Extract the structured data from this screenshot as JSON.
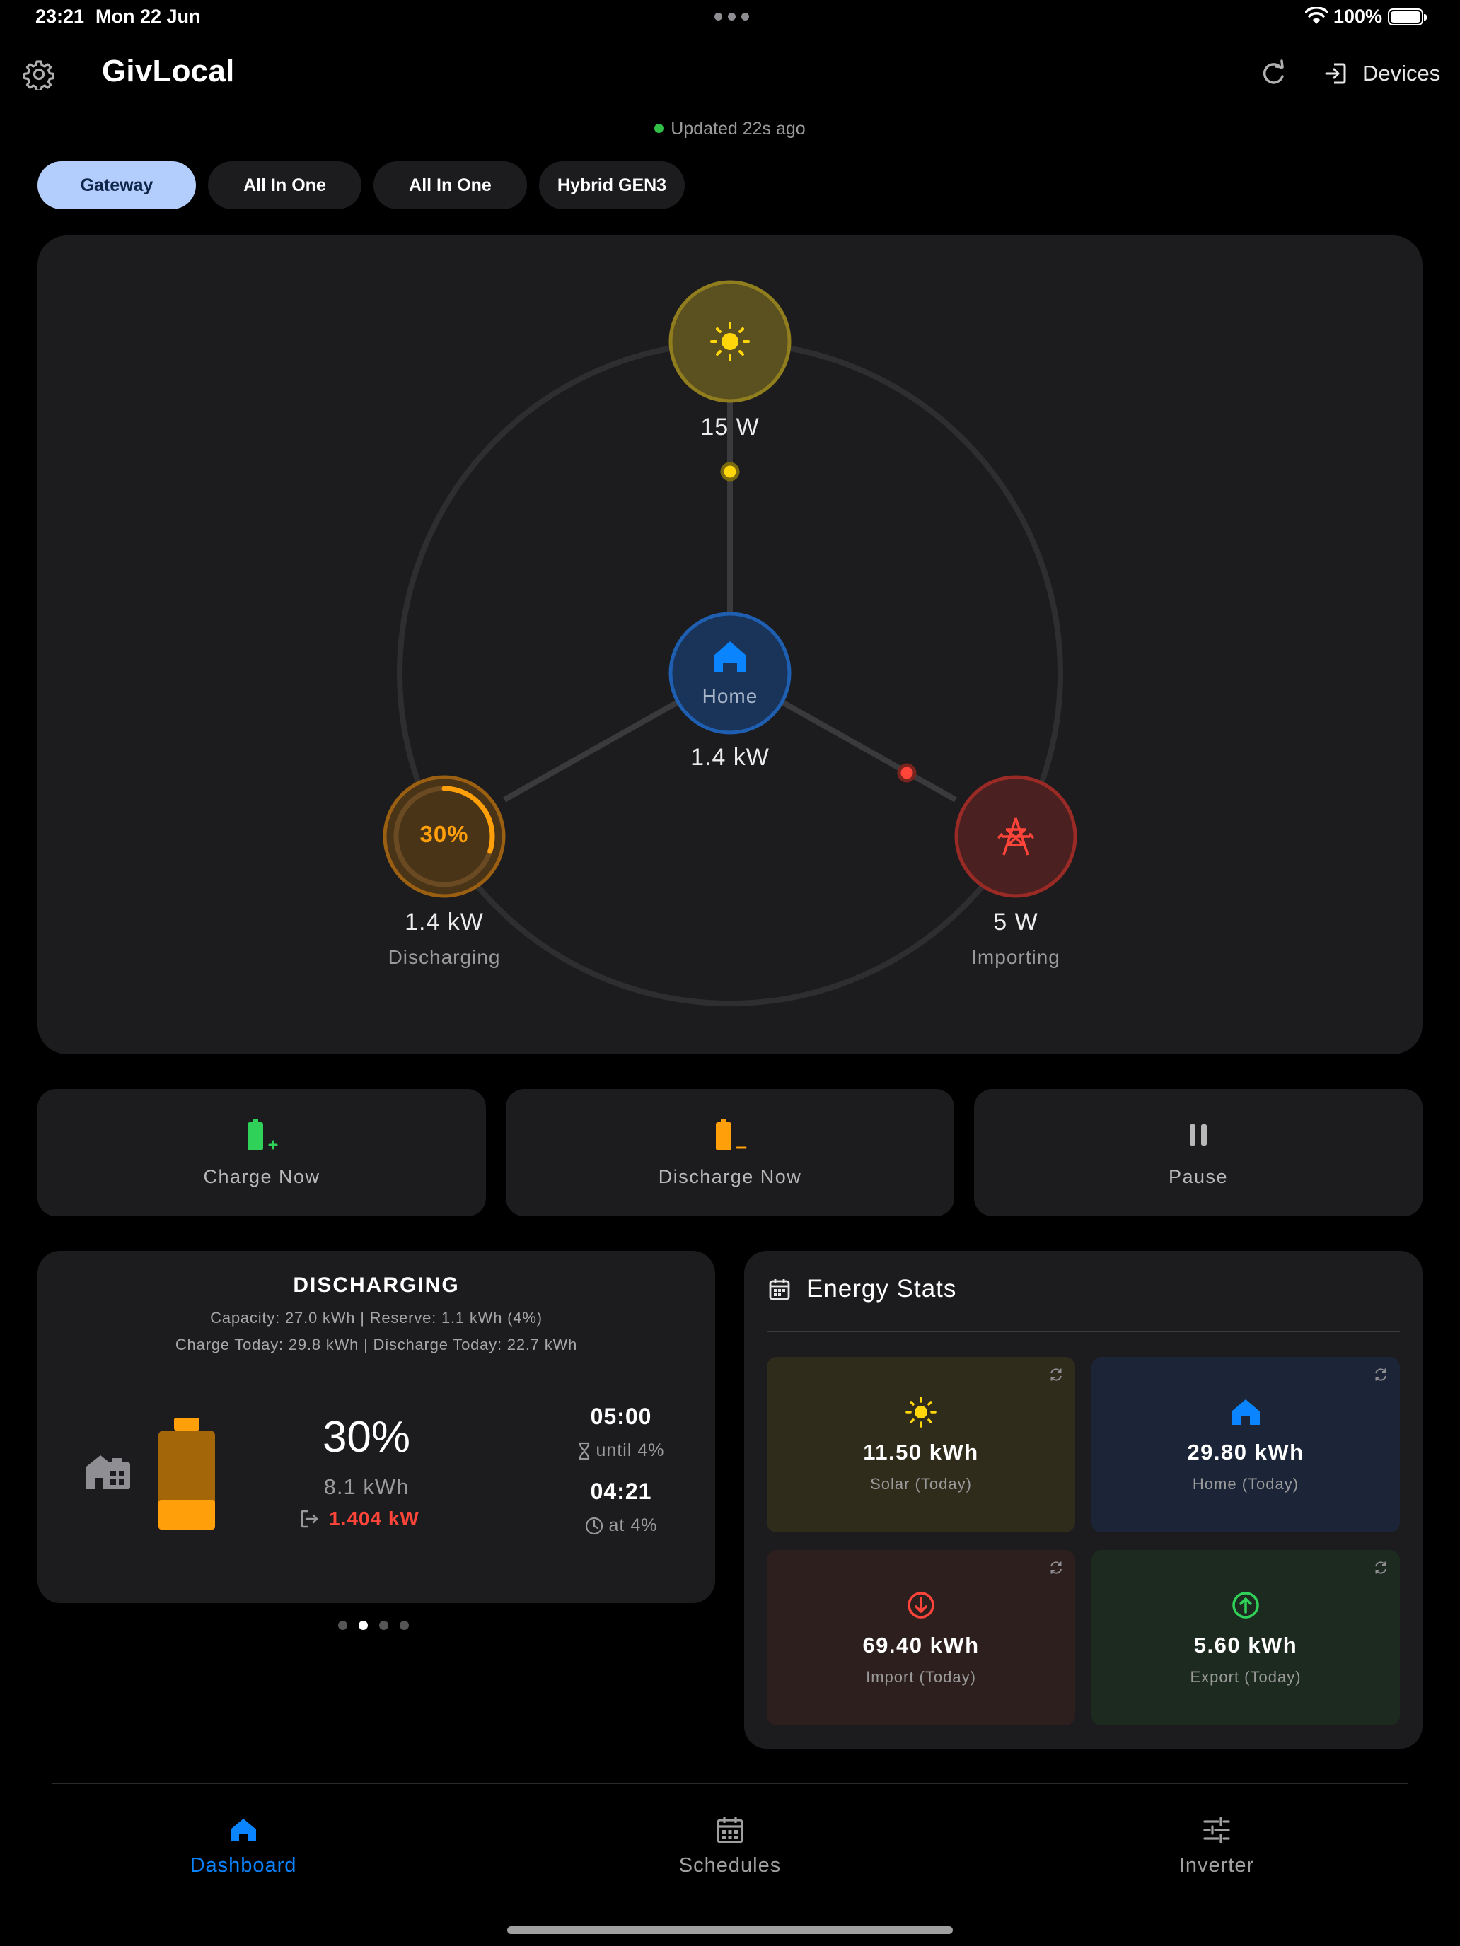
{
  "status_bar": {
    "time": "23:21",
    "date": "Mon 22 Jun",
    "battery": "100%"
  },
  "header": {
    "title": "GivLocal",
    "devices_label": "Devices",
    "updated": "Updated 22s ago"
  },
  "tabs": [
    {
      "label": "Gateway",
      "active": true
    },
    {
      "label": "All In One",
      "active": false
    },
    {
      "label": "All In One",
      "active": false
    },
    {
      "label": "Hybrid GEN3",
      "active": false
    }
  ],
  "flow": {
    "solar": {
      "power": "15 W"
    },
    "home": {
      "label": "Home",
      "power": "1.4 kW"
    },
    "battery": {
      "percent": "30%",
      "percent_value": 30,
      "power": "1.4 kW",
      "state": "Discharging"
    },
    "grid": {
      "power": "5 W",
      "state": "Importing"
    }
  },
  "actions": {
    "charge": "Charge Now",
    "discharge": "Discharge Now",
    "pause": "Pause"
  },
  "battery_card": {
    "title": "DISCHARGING",
    "line1": "Capacity: 27.0 kWh | Reserve: 1.1 kWh (4%)",
    "line2": "Charge Today: 29.8 kWh | Discharge Today: 22.7 kWh",
    "percent": "30%",
    "energy": "8.1 kWh",
    "power": "1.404 kW",
    "time_until": "05:00",
    "time_until_label": "until 4%",
    "time_at": "04:21",
    "time_at_label": "at 4%"
  },
  "energy_stats": {
    "title": "Energy Stats",
    "solar": {
      "value": "11.50 kWh",
      "label": "Solar (Today)"
    },
    "home": {
      "value": "29.80 kWh",
      "label": "Home (Today)"
    },
    "import": {
      "value": "69.40 kWh",
      "label": "Import (Today)"
    },
    "export": {
      "value": "5.60 kWh",
      "label": "Export (Today)"
    }
  },
  "nav": {
    "dashboard": "Dashboard",
    "schedules": "Schedules",
    "inverter": "Inverter"
  },
  "colors": {
    "accent": "#0a84ff",
    "solar": "#ffd60a",
    "battery": "#ff9f0a",
    "grid": "#ff453a",
    "export": "#30d158"
  }
}
